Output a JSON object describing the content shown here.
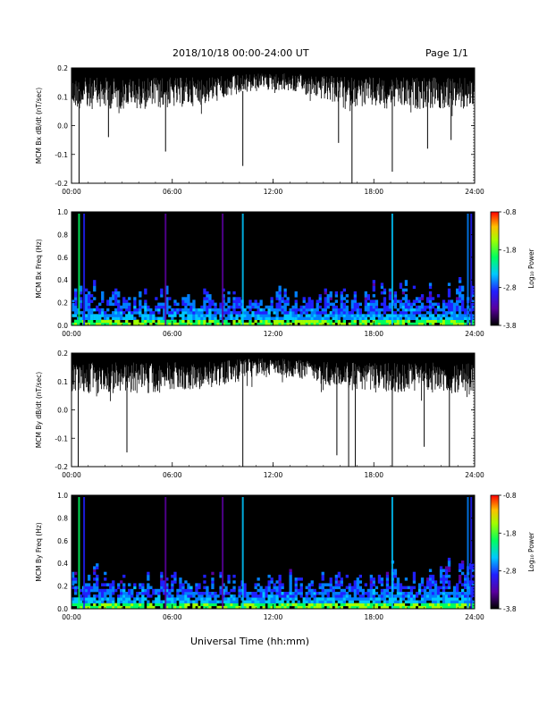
{
  "header": {
    "date_range": "2018/10/18  00:00-24:00 UT",
    "page": "Page 1/1"
  },
  "xaxis_title": "Universal Time (hh:mm)",
  "chart_data": [
    {
      "type": "line",
      "ylabel": "MCM Bx dB/dt (nT/sec)",
      "ylim": [
        -0.2,
        0.2
      ],
      "yticks": [
        "0.2",
        "0.1",
        "0.0",
        "-0.1",
        "-0.2"
      ],
      "yvalues": [
        0.2,
        0.1,
        0.0,
        -0.1,
        -0.2
      ],
      "xticks": [
        "00:00",
        "06:00",
        "12:00",
        "18:00",
        "24:00"
      ],
      "xlim": [
        0,
        24
      ],
      "series_color": "#000000",
      "spikes": [
        {
          "x": 0.45,
          "y": -0.2
        },
        {
          "x": 5.6,
          "y": -0.09
        },
        {
          "x": 10.2,
          "y": -0.14
        },
        {
          "x": 16.7,
          "y": -0.2
        },
        {
          "x": 19.1,
          "y": -0.16
        },
        {
          "x": 21.2,
          "y": -0.08
        },
        {
          "x": 22.6,
          "y": -0.05
        },
        {
          "x": 2.2,
          "y": -0.04
        },
        {
          "x": 15.9,
          "y": -0.06
        }
      ]
    },
    {
      "type": "heatmap",
      "ylabel": "MCM Bx Freq (Hz)",
      "ylim": [
        0,
        1.0
      ],
      "yticks": [
        "1.0",
        "0.8",
        "0.6",
        "0.4",
        "0.2",
        "0.0"
      ],
      "yvalues": [
        1.0,
        0.8,
        0.6,
        0.4,
        0.2,
        0.0
      ],
      "xticks": [
        "00:00",
        "06:00",
        "12:00",
        "18:00",
        "24:00"
      ],
      "xlim": [
        0,
        24
      ],
      "colorbar": {
        "label": "Log₁₀ Power",
        "ticks": [
          "-0.8",
          "-1.8",
          "-2.8",
          "-3.8"
        ],
        "range": [
          -3.8,
          -0.8
        ]
      }
    },
    {
      "type": "line",
      "ylabel": "MCM By dB/dt (nT/sec)",
      "ylim": [
        -0.2,
        0.2
      ],
      "yticks": [
        "0.2",
        "0.1",
        "0.0",
        "-0.1",
        "-0.2"
      ],
      "yvalues": [
        0.2,
        0.1,
        0.0,
        -0.1,
        -0.2
      ],
      "xticks": [
        "00:00",
        "06:00",
        "12:00",
        "18:00",
        "24:00"
      ],
      "xlim": [
        0,
        24
      ],
      "series_color": "#000000",
      "spikes": [
        {
          "x": 0.4,
          "y": -0.2
        },
        {
          "x": 10.2,
          "y": -0.2
        },
        {
          "x": 16.5,
          "y": -0.2
        },
        {
          "x": 16.9,
          "y": -0.2
        },
        {
          "x": 19.1,
          "y": -0.2
        },
        {
          "x": 22.5,
          "y": -0.2
        },
        {
          "x": 3.3,
          "y": -0.15
        },
        {
          "x": 15.8,
          "y": -0.16
        },
        {
          "x": 21.0,
          "y": -0.13
        }
      ]
    },
    {
      "type": "heatmap",
      "ylabel": "MCM By Freq (Hz)",
      "ylim": [
        0,
        1.0
      ],
      "yticks": [
        "1.0",
        "0.8",
        "0.6",
        "0.4",
        "0.2",
        "0.0"
      ],
      "yvalues": [
        1.0,
        0.8,
        0.6,
        0.4,
        0.2,
        0.0
      ],
      "xticks": [
        "00:00",
        "06:00",
        "12:00",
        "18:00",
        "24:00"
      ],
      "xlim": [
        0,
        24
      ],
      "colorbar": {
        "label": "Log₁₀ Power",
        "ticks": [
          "-0.8",
          "-1.8",
          "-2.8",
          "-3.8"
        ],
        "range": [
          -3.8,
          -0.8
        ]
      }
    }
  ]
}
